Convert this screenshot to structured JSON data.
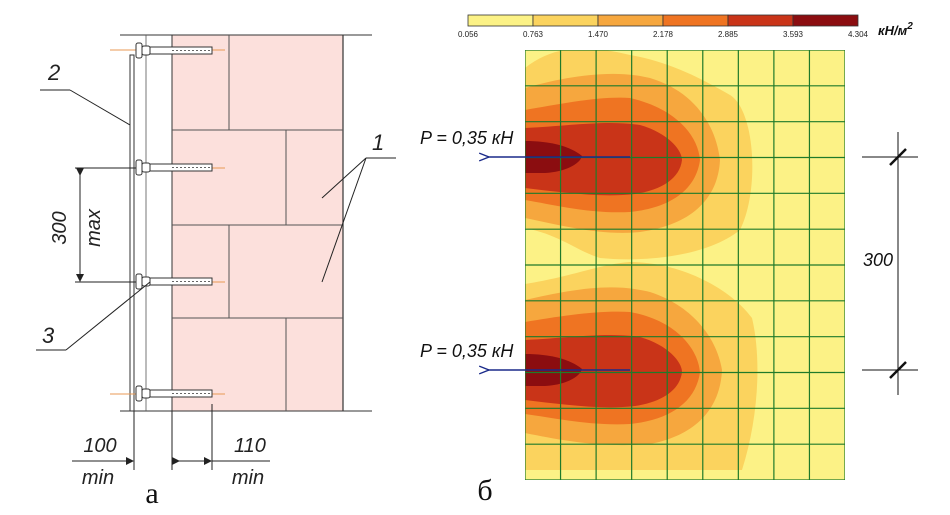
{
  "left_panel": {
    "caption": "а",
    "labels": {
      "callout_1": "1",
      "callout_2": "2",
      "callout_3": "3"
    },
    "dimensions": {
      "vertical_value": "300",
      "vertical_qualifier": "max",
      "offset_left_value": "100",
      "offset_left_qualifier": "min",
      "offset_right_value": "110",
      "offset_right_qualifier": "min"
    }
  },
  "right_panel": {
    "caption": "б",
    "legend": {
      "unit": "кН/м",
      "unit_superscript": "2",
      "ticks": [
        "0.056",
        "0.763",
        "1.470",
        "2.178",
        "2.885",
        "3.593",
        "4.304"
      ],
      "colors": [
        "#fcf286",
        "#fbd35e",
        "#f6a73e",
        "#ef7422",
        "#c93418",
        "#8b0d10"
      ]
    },
    "force_label_top": "P = 0,35 кН",
    "force_label_bottom": "P = 0,35 кН",
    "spacing_label": "300"
  }
}
